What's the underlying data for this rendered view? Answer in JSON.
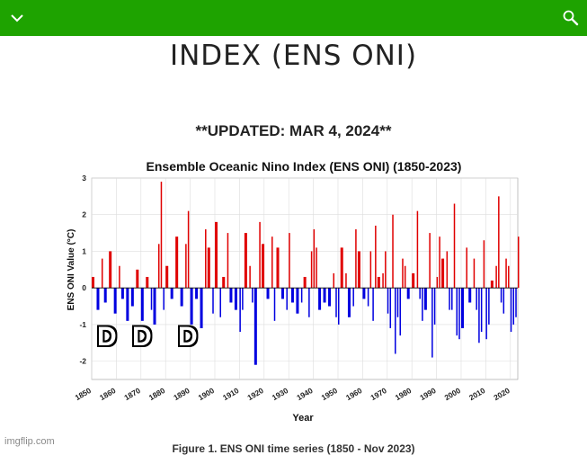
{
  "header": {
    "menu_icon": "chevron-down-icon",
    "search_icon": "search-icon",
    "bar_color": "#1ea300"
  },
  "page": {
    "title": "INDEX (ENS ONI)",
    "updated": "**UPDATED: MAR 4, 2024**",
    "caption": "Figure 1. ENS ONI time series (1850 - Nov 2023)",
    "watermark": "imgflip.com"
  },
  "overlay": {
    "letters": [
      "D",
      "D",
      "D"
    ]
  },
  "chart_data": {
    "type": "area",
    "title": "Ensemble Oceanic Nino Index (ENS ONI) (1850-2023)",
    "xlabel": "Year",
    "ylabel": "ENS ONI Value (°C)",
    "xlim": [
      1850,
      2023
    ],
    "ylim": [
      -2.5,
      3
    ],
    "x_ticks": [
      "1850",
      "1860",
      "1870",
      "1880",
      "1890",
      "1900",
      "1910",
      "1920",
      "1930",
      "1940",
      "1950",
      "1960",
      "1970",
      "1980",
      "1990",
      "2000",
      "2010",
      "2020"
    ],
    "y_ticks": [
      "3",
      "2",
      "1",
      "0",
      "-1",
      "-2"
    ],
    "grid": true,
    "positive_color": "#e00000",
    "negative_color": "#0000e0",
    "x": [
      1850,
      1852,
      1854,
      1855,
      1857,
      1859,
      1861,
      1862,
      1864,
      1866,
      1868,
      1870,
      1872,
      1874,
      1875,
      1877,
      1878,
      1879,
      1880,
      1882,
      1884,
      1886,
      1888,
      1889,
      1890,
      1892,
      1894,
      1896,
      1897,
      1899,
      1900,
      1902,
      1903,
      1905,
      1906,
      1908,
      1910,
      1911,
      1912,
      1914,
      1915,
      1916,
      1918,
      1919,
      1921,
      1923,
      1924,
      1925,
      1927,
      1929,
      1930,
      1931,
      1933,
      1935,
      1936,
      1938,
      1939,
      1940,
      1941,
      1942,
      1944,
      1946,
      1948,
      1949,
      1950,
      1951,
      1953,
      1954,
      1956,
      1957,
      1958,
      1960,
      1962,
      1963,
      1964,
      1965,
      1966,
      1968,
      1969,
      1970,
      1971,
      1972,
      1973,
      1974,
      1975,
      1976,
      1977,
      1978,
      1980,
      1982,
      1983,
      1984,
      1985,
      1987,
      1988,
      1989,
      1990,
      1991,
      1992,
      1994,
      1995,
      1996,
      1997,
      1998,
      1999,
      2000,
      2002,
      2003,
      2005,
      2006,
      2007,
      2008,
      2009,
      2010,
      2011,
      2012,
      2014,
      2015,
      2016,
      2017,
      2018,
      2019,
      2020,
      2021,
      2022,
      2023
    ],
    "values": [
      0.3,
      -0.6,
      0.8,
      -0.4,
      1.0,
      -0.7,
      0.6,
      -0.3,
      -0.9,
      -0.5,
      0.5,
      -0.9,
      0.3,
      -0.6,
      -1.0,
      1.2,
      2.9,
      -0.6,
      0.6,
      -0.3,
      1.4,
      -0.5,
      1.2,
      2.1,
      -1.0,
      -0.3,
      -1.1,
      1.6,
      1.1,
      -0.7,
      1.8,
      -0.8,
      0.3,
      1.5,
      -0.4,
      -0.6,
      -1.2,
      -0.6,
      1.5,
      0.6,
      -0.4,
      -2.1,
      1.8,
      1.2,
      -0.3,
      1.4,
      -0.9,
      1.1,
      -0.3,
      -0.6,
      1.5,
      -0.4,
      -0.7,
      -0.4,
      0.3,
      -0.8,
      1.0,
      1.6,
      1.1,
      -0.6,
      -0.4,
      -0.5,
      0.4,
      -0.8,
      -1.0,
      1.1,
      0.4,
      -0.8,
      -0.5,
      1.6,
      1.0,
      -0.3,
      -0.5,
      1.0,
      -0.9,
      1.7,
      0.3,
      0.4,
      1.0,
      -0.7,
      -1.1,
      2.0,
      -1.8,
      -0.8,
      -1.3,
      0.8,
      0.6,
      -0.3,
      0.4,
      2.1,
      -0.3,
      -0.9,
      -0.6,
      1.5,
      -1.9,
      -1.0,
      0.3,
      1.4,
      0.8,
      1.0,
      -0.6,
      -0.6,
      2.3,
      -1.3,
      -1.4,
      -1.1,
      1.1,
      -0.4,
      0.8,
      -0.6,
      -1.5,
      -1.2,
      1.3,
      -1.4,
      -1.0,
      0.2,
      0.6,
      2.5,
      -0.4,
      -0.7,
      0.8,
      0.6,
      -1.2,
      -1.0,
      -0.8,
      1.4
    ]
  }
}
